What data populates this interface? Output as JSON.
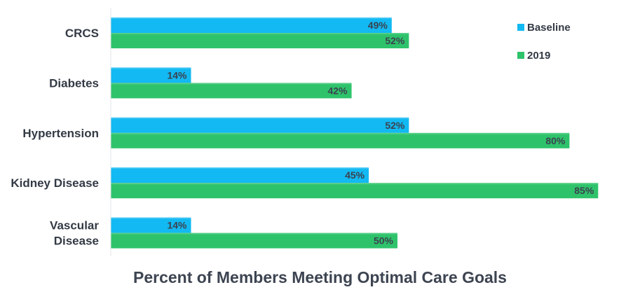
{
  "chart_data": {
    "type": "bar",
    "orientation": "horizontal",
    "title": "Percent of Members Meeting Optimal Care Goals",
    "categories": [
      [
        "CRCS"
      ],
      [
        "Diabetes"
      ],
      [
        "Hypertension"
      ],
      [
        "Kidney Disease"
      ],
      [
        "Vascular",
        "Disease"
      ]
    ],
    "series": [
      {
        "name": "Baseline",
        "values": [
          49,
          14,
          52,
          45,
          14
        ],
        "labels": [
          "49%",
          "14%",
          "52%",
          "45%",
          "14%"
        ],
        "color": "#12b9f2"
      },
      {
        "name": "2019",
        "values": [
          52,
          42,
          80,
          85,
          50
        ],
        "labels": [
          "52%",
          "42%",
          "80%",
          "85%",
          "50%"
        ],
        "color": "#2ec36b"
      }
    ],
    "xlim": [
      0,
      100
    ],
    "data_labels": "inside-end",
    "legend_position": "top-right",
    "grid": false
  }
}
